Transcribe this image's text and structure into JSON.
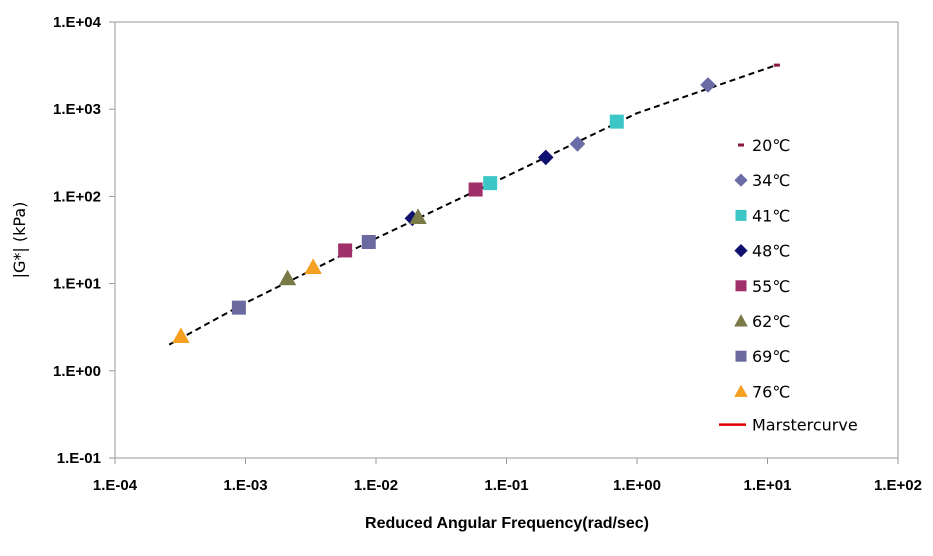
{
  "chart_data": {
    "type": "scatter",
    "title": "",
    "xlabel": "Reduced Angular Frequency(rad/sec)",
    "ylabel": "|G*| (kPa)",
    "xscale": "log",
    "yscale": "log",
    "xlim": [
      0.0001,
      100
    ],
    "ylim": [
      0.1,
      10000
    ],
    "x_tick_labels": [
      "1.E-04",
      "1.E-03",
      "1.E-02",
      "1.E-01",
      "1.E+00",
      "1.E+01",
      "1.E+02"
    ],
    "y_tick_labels": [
      "1.E-01",
      "1.E+00",
      "1.E+01",
      "1.E+02",
      "1.E+03",
      "1.E+04"
    ],
    "grid": false,
    "legend_position": "right",
    "series": [
      {
        "name": "20℃",
        "marker": "dash",
        "color": "#8b1a3a",
        "points": [
          [
            11.8,
            3200
          ]
        ]
      },
      {
        "name": "34℃",
        "marker": "diamond",
        "color": "#6b6ba6",
        "points": [
          [
            3.5,
            1900
          ],
          [
            0.35,
            400
          ]
        ]
      },
      {
        "name": "41℃",
        "marker": "square",
        "color": "#3cc6c6",
        "points": [
          [
            0.7,
            720
          ],
          [
            0.075,
            142
          ]
        ]
      },
      {
        "name": "48℃",
        "marker": "diamond",
        "color": "#101070",
        "points": [
          [
            0.2,
            280
          ],
          [
            0.019,
            56
          ]
        ]
      },
      {
        "name": "55℃",
        "marker": "square",
        "color": "#a0306a",
        "points": [
          [
            0.058,
            120
          ],
          [
            0.0058,
            24
          ]
        ]
      },
      {
        "name": "62℃",
        "marker": "triangle",
        "color": "#7a7a48",
        "points": [
          [
            0.021,
            58
          ],
          [
            0.0021,
            11.5
          ]
        ]
      },
      {
        "name": "69℃",
        "marker": "square",
        "color": "#6a6aa0",
        "points": [
          [
            0.0088,
            30
          ],
          [
            0.00089,
            5.3
          ]
        ]
      },
      {
        "name": "76℃",
        "marker": "triangle",
        "color": "#f5a020",
        "points": [
          [
            0.0033,
            15.5
          ],
          [
            0.00032,
            2.5
          ]
        ]
      }
    ],
    "mastercurve": {
      "name": "Marstercurve",
      "color": "#e00000",
      "style": "dashed-black",
      "points": [
        [
          0.00026,
          2.0
        ],
        [
          0.001,
          6.0
        ],
        [
          0.01,
          33
        ],
        [
          0.1,
          170
        ],
        [
          1,
          900
        ],
        [
          12,
          3250
        ]
      ]
    }
  },
  "colors": {
    "axis": "#999999",
    "curve": "#000000"
  }
}
